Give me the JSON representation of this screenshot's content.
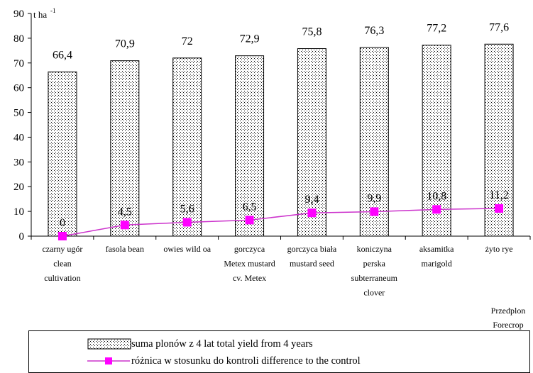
{
  "chart_data": {
    "type": "bar",
    "categories": [
      [
        "czarny ugór",
        "clean",
        "cultivation"
      ],
      [
        "fasola bean"
      ],
      [
        "owies wild oa"
      ],
      [
        "gorczyca",
        "Metex mustard",
        "cv. Metex"
      ],
      [
        "gorczyca biała",
        "mustard seed"
      ],
      [
        "koniczyna",
        "perska",
        "subterraneum",
        "clover"
      ],
      [
        "aksamitka",
        "marigold"
      ],
      [
        "żyto rye"
      ]
    ],
    "series": [
      {
        "name": "suma plonów z 4 lat total yield from 4 years",
        "type": "bar",
        "values": [
          66.4,
          70.9,
          72,
          72.9,
          75.8,
          76.3,
          77.2,
          77.6
        ],
        "labels": [
          "66,4",
          "70,9",
          "72",
          "72,9",
          "75,8",
          "76,3",
          "77,2",
          "77,6"
        ],
        "pattern": "dotted"
      },
      {
        "name": "różnica w stosunku do kontroli difference to the control",
        "type": "line",
        "values": [
          0,
          4.5,
          5.6,
          6.5,
          9.4,
          9.9,
          10.8,
          11.2
        ],
        "labels": [
          "0",
          "4,5",
          "5,6",
          "6,5",
          "9,4",
          "9,9",
          "10,8",
          "11,2"
        ],
        "color": "#ff00ff",
        "line_color": "#cc33cc",
        "marker": "square"
      }
    ],
    "ylim": [
      0,
      90
    ],
    "yticks": [
      0,
      10,
      20,
      30,
      40,
      50,
      60,
      70,
      80,
      90
    ],
    "ylabel_unit": "t ha",
    "ylabel_unit_sup": "-1",
    "xlabel": [
      "Przedplon",
      "Forecrop"
    ],
    "grid": false,
    "legend": "bottom"
  }
}
